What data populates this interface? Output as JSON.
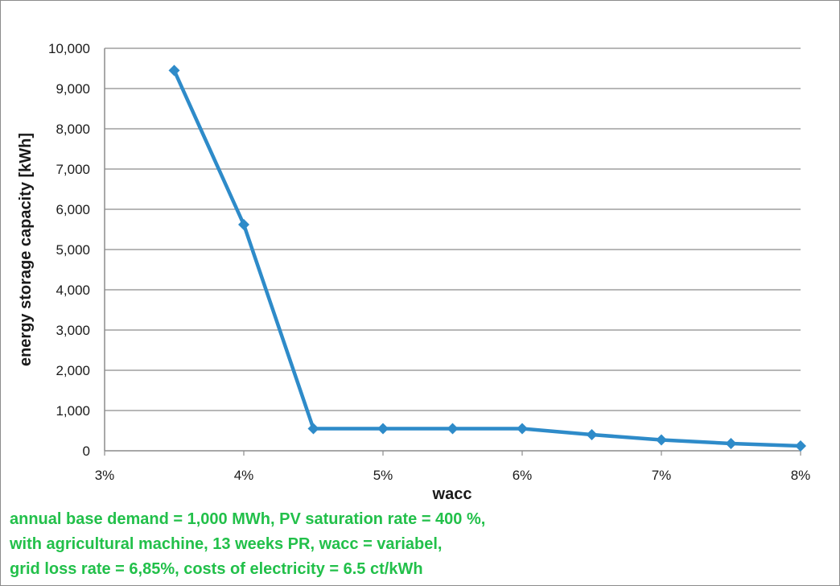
{
  "chart_data": {
    "type": "line",
    "title": "",
    "xlabel": "wacc",
    "ylabel": "energy storage capacity [kWh]",
    "x_tick_labels": [
      "3%",
      "4%",
      "5%",
      "6%",
      "7%",
      "8%"
    ],
    "y_tick_labels": [
      "0",
      "1,000",
      "2,000",
      "3,000",
      "4,000",
      "5,000",
      "6,000",
      "7,000",
      "8,000",
      "9,000",
      "10,000"
    ],
    "xlim": [
      3,
      8
    ],
    "ylim": [
      0,
      10000
    ],
    "grid": "horizontal",
    "series": [
      {
        "color": "#2e8bc9",
        "marker": "diamond",
        "x": [
          3.5,
          4.0,
          4.5,
          5.0,
          5.5,
          6.0,
          6.5,
          7.0,
          7.5,
          8.0
        ],
        "values": [
          9450,
          5620,
          550,
          550,
          550,
          550,
          400,
          270,
          180,
          120
        ]
      }
    ]
  },
  "annotation_lines": [
    "annual base demand = 1,000 MWh, PV saturation rate = 400 %,",
    "with agricultural machine, 13 weeks PR, wacc = variabel,",
    "grid loss rate = 6,85%, costs of electricity = 6.5 ct/kWh"
  ],
  "colors": {
    "series": "#2e8bc9",
    "annotation": "#22c04a",
    "grid": "#8c8c8c"
  }
}
